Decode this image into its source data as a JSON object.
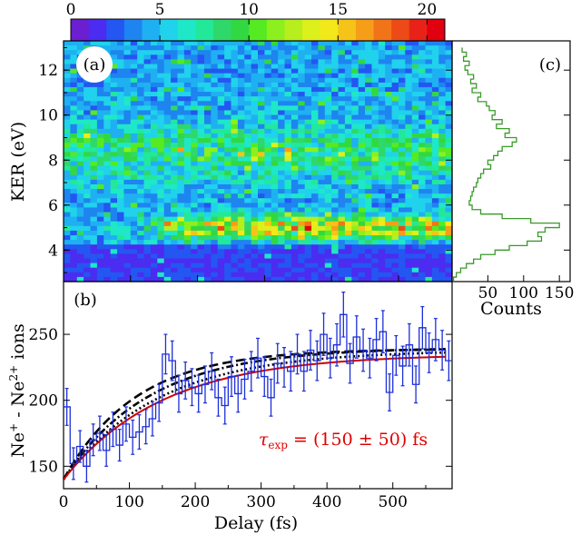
{
  "colorbar": {
    "tick_labels": [
      "0",
      "5",
      "10",
      "15",
      "20"
    ],
    "ticks": [
      0,
      5,
      10,
      15,
      20
    ],
    "range": [
      0,
      21
    ],
    "colors": [
      "#6b1fd0",
      "#4b2cf0",
      "#2456f2",
      "#1e84f0",
      "#1fb0f2",
      "#20d2ec",
      "#1ee8c8",
      "#22e89a",
      "#2ed86a",
      "#32d842",
      "#56ea22",
      "#8cf01e",
      "#b6ee1e",
      "#dcf01c",
      "#f2e81a",
      "#f6c418",
      "#f69e18",
      "#f27418",
      "#ee4a18",
      "#e82218",
      "#e00010"
    ]
  },
  "chart_data": [
    {
      "panel": "(a)",
      "type": "heatmap",
      "xlabel": "",
      "ylabel": "KER (eV)",
      "xlim": [
        0,
        580
      ],
      "ylim": [
        2.6,
        13.3
      ],
      "yticks": [
        4,
        6,
        8,
        10,
        12
      ],
      "ytick_labels": [
        "4",
        "6",
        "8",
        "10",
        "12"
      ],
      "grid_columns": 58,
      "grid_rows": 52,
      "bands": [
        {
          "ker_center": 8.3,
          "ker_width": 1.2,
          "mean_counts": 8
        },
        {
          "ker_center": 5.0,
          "ker_width": 0.5,
          "mean_counts": 14,
          "from_delay": 150
        }
      ],
      "background_mean_counts": 4,
      "low_ker_mean_counts": 1.5
    },
    {
      "panel": "(c)",
      "type": "line",
      "xlabel": "Counts",
      "ylabel": "",
      "xlim": [
        0,
        165
      ],
      "ylim": [
        2.6,
        13.3
      ],
      "xticks": [
        50,
        100,
        150
      ],
      "xtick_labels": [
        "50",
        "100",
        "150"
      ],
      "ker": [
        12.9,
        12.7,
        12.5,
        12.3,
        12.1,
        11.9,
        11.7,
        11.5,
        11.3,
        11.1,
        10.9,
        10.7,
        10.5,
        10.3,
        10.1,
        9.9,
        9.7,
        9.5,
        9.3,
        9.1,
        8.9,
        8.7,
        8.5,
        8.3,
        8.1,
        7.9,
        7.7,
        7.5,
        7.3,
        7.1,
        6.9,
        6.7,
        6.5,
        6.3,
        6.1,
        5.9,
        5.7,
        5.5,
        5.3,
        5.1,
        4.9,
        4.7,
        4.5,
        4.3,
        4.1,
        3.9,
        3.7,
        3.5,
        3.3,
        3.1,
        2.9,
        2.7
      ],
      "counts": [
        14,
        20,
        16,
        24,
        18,
        22,
        30,
        26,
        34,
        28,
        40,
        36,
        48,
        52,
        60,
        56,
        70,
        62,
        80,
        74,
        90,
        84,
        70,
        64,
        58,
        50,
        54,
        44,
        40,
        36,
        34,
        30,
        28,
        26,
        24,
        28,
        40,
        70,
        110,
        150,
        130,
        120,
        125,
        105,
        80,
        60,
        40,
        30,
        20,
        12,
        6,
        2
      ]
    },
    {
      "panel": "(b)",
      "type": "line",
      "xlabel": "Delay (fs)",
      "ylabel": "Ne⁺ - Ne²⁺ ions",
      "xlim": [
        0,
        590
      ],
      "ylim": [
        133,
        290
      ],
      "xticks": [
        0,
        100,
        200,
        300,
        400,
        500
      ],
      "xtick_labels": [
        "0",
        "100",
        "200",
        "300",
        "400",
        "500"
      ],
      "yticks": [
        150,
        200,
        250
      ],
      "ytick_labels": [
        "150",
        "200",
        "250"
      ],
      "annotation": "τexp = (150 ± 50) fs",
      "delay": [
        0,
        10,
        20,
        30,
        40,
        50,
        60,
        70,
        80,
        90,
        100,
        110,
        120,
        130,
        140,
        150,
        160,
        170,
        180,
        190,
        200,
        210,
        220,
        230,
        240,
        250,
        260,
        270,
        280,
        290,
        300,
        310,
        320,
        330,
        340,
        350,
        360,
        370,
        380,
        390,
        400,
        410,
        420,
        430,
        440,
        450,
        460,
        470,
        480,
        490,
        500,
        510,
        520,
        530,
        540,
        550,
        560,
        570,
        580
      ],
      "ions": [
        195,
        152,
        165,
        150,
        170,
        175,
        162,
        178,
        166,
        182,
        172,
        176,
        180,
        186,
        198,
        235,
        230,
        205,
        215,
        210,
        205,
        212,
        222,
        202,
        196,
        218,
        205,
        216,
        222,
        232,
        218,
        202,
        228,
        225,
        222,
        235,
        222,
        238,
        230,
        250,
        232,
        242,
        265,
        228,
        248,
        238,
        232,
        246,
        252,
        206,
        234,
        226,
        242,
        212,
        255,
        236,
        246,
        238,
        230
      ],
      "error": [
        14,
        12,
        12,
        12,
        12,
        13,
        12,
        13,
        12,
        13,
        13,
        13,
        13,
        13,
        14,
        15,
        15,
        14,
        14,
        14,
        14,
        14,
        14,
        14,
        14,
        15,
        14,
        15,
        15,
        15,
        15,
        14,
        15,
        15,
        15,
        15,
        15,
        15,
        15,
        16,
        15,
        16,
        17,
        15,
        16,
        16,
        15,
        16,
        16,
        14,
        15,
        15,
        16,
        14,
        16,
        15,
        16,
        15,
        15
      ],
      "fit_curves": [
        {
          "style": "solid",
          "color": "#d00000",
          "a": 140,
          "b": 95,
          "tau": 150
        },
        {
          "style": "dashed",
          "color": "#000000",
          "a": 140,
          "b": 99,
          "tau": 110
        },
        {
          "style": "dash-dot",
          "color": "#000000",
          "a": 140,
          "b": 100,
          "tau": 130
        },
        {
          "style": "dotted",
          "color": "#000000",
          "a": 140,
          "b": 98,
          "tau": 145
        }
      ]
    }
  ]
}
